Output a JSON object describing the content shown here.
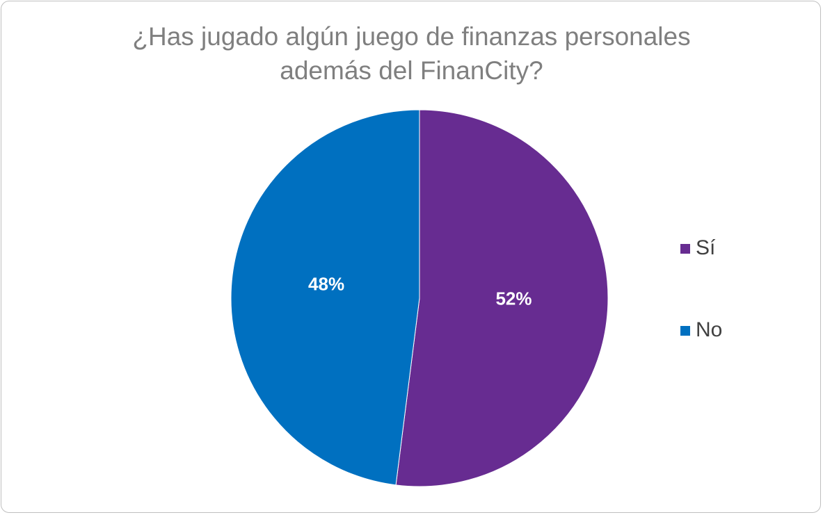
{
  "chart_data": {
    "type": "pie",
    "title_lines": [
      "¿Has jugado algún juego de finanzas personales",
      "además del FinanCity?"
    ],
    "slices": [
      {
        "label": "Sí",
        "value": 52,
        "display": "52%",
        "color": "#672C91"
      },
      {
        "label": "No",
        "value": 48,
        "display": "48%",
        "color": "#0070C0"
      }
    ],
    "legend_position": "right"
  }
}
